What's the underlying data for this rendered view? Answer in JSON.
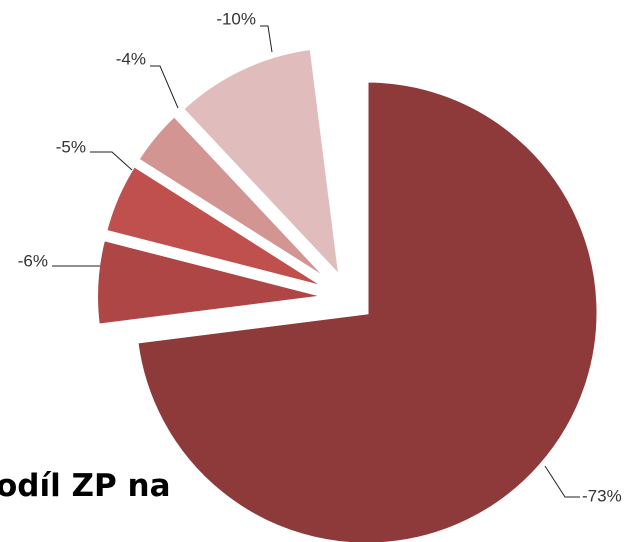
{
  "chart_data": {
    "type": "pie",
    "annotation": "odíl ZP na",
    "values": [
      -73,
      -6,
      -5,
      -4,
      -10
    ],
    "value_labels": [
      "-73%",
      "-6%",
      "-5%",
      "-4%",
      "-10%"
    ],
    "colors": [
      "#8e3a3a",
      "#ad4644",
      "#c0504d",
      "#d39592",
      "#e1bcbc"
    ]
  }
}
